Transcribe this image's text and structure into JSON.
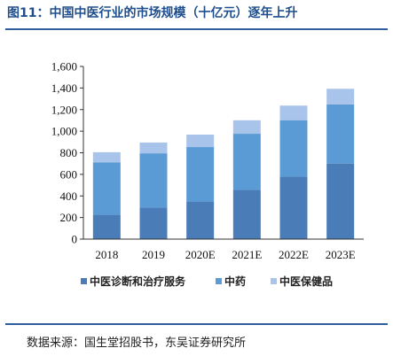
{
  "header": {
    "title": "图11：中国中医行业的市场规模（十亿元）逐年上升"
  },
  "footer": {
    "source": "数据来源：国生堂招股书，东吴证券研究所"
  },
  "chart_data": {
    "type": "bar",
    "stacked": true,
    "categories": [
      "2018",
      "2019",
      "2020E",
      "2021E",
      "2022E",
      "2023E"
    ],
    "series": [
      {
        "name": "中医诊断和治疗服务",
        "values": [
          225,
          292,
          348,
          455,
          578,
          700
        ],
        "color": "#4a7db8"
      },
      {
        "name": "中药",
        "values": [
          485,
          503,
          505,
          521,
          524,
          548
        ],
        "color": "#5b9bd5"
      },
      {
        "name": "中医保健品",
        "values": [
          95,
          100,
          115,
          125,
          135,
          145
        ],
        "color": "#a9c4ea"
      }
    ],
    "ylim": [
      0,
      1600
    ],
    "yticks": [
      "0",
      "200",
      "400",
      "600",
      "800",
      "1,000",
      "1,200",
      "1,400",
      "1,600"
    ],
    "grid": false,
    "legend": "bottom"
  }
}
